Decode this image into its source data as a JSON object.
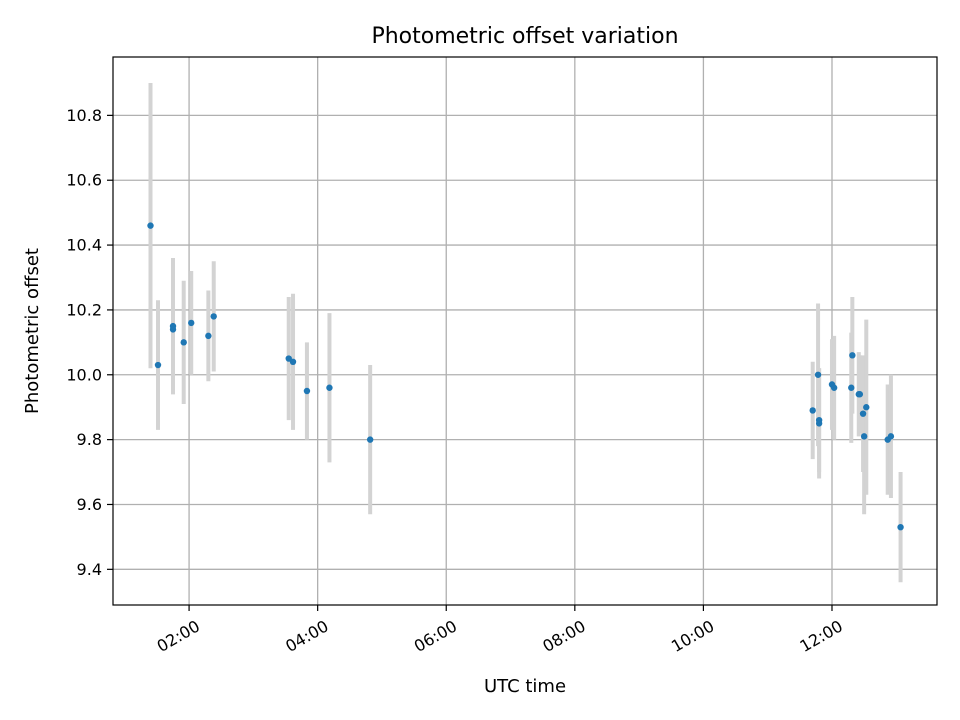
{
  "chart_data": {
    "type": "scatter",
    "title": "Photometric offset variation",
    "xlabel": "UTC time",
    "ylabel": "Photometric offset",
    "x_unit": "hours UTC",
    "xlim": [
      "00:49",
      "13:38"
    ],
    "ylim": [
      9.29,
      10.98
    ],
    "xticks": [
      {
        "value": "02:00",
        "label": "02:00"
      },
      {
        "value": "04:00",
        "label": "04:00"
      },
      {
        "value": "06:00",
        "label": "06:00"
      },
      {
        "value": "08:00",
        "label": "08:00"
      },
      {
        "value": "10:00",
        "label": "10:00"
      },
      {
        "value": "12:00",
        "label": "12:00"
      }
    ],
    "yticks": [
      {
        "value": 9.4,
        "label": "9.4"
      },
      {
        "value": 9.6,
        "label": "9.6"
      },
      {
        "value": 9.8,
        "label": "9.8"
      },
      {
        "value": 10.0,
        "label": "10.0"
      },
      {
        "value": 10.2,
        "label": "10.2"
      },
      {
        "value": 10.4,
        "label": "10.4"
      },
      {
        "value": 10.6,
        "label": "10.6"
      },
      {
        "value": 10.8,
        "label": "10.8"
      }
    ],
    "grid": true,
    "colors": {
      "point": "#1f77b4",
      "errorbar": "#d3d3d3",
      "grid": "#b0b0b0"
    },
    "points": [
      {
        "x": "01:24",
        "y": 10.46,
        "err": 0.44
      },
      {
        "x": "01:31",
        "y": 10.03,
        "err": 0.2
      },
      {
        "x": "01:45",
        "y": 10.15,
        "err": 0.21
      },
      {
        "x": "01:45",
        "y": 10.14,
        "err": 0.2
      },
      {
        "x": "01:55",
        "y": 10.1,
        "err": 0.19
      },
      {
        "x": "02:02",
        "y": 10.16,
        "err": 0.16
      },
      {
        "x": "02:18",
        "y": 10.12,
        "err": 0.14
      },
      {
        "x": "02:23",
        "y": 10.18,
        "err": 0.17
      },
      {
        "x": "03:33",
        "y": 10.05,
        "err": 0.19
      },
      {
        "x": "03:37",
        "y": 10.04,
        "err": 0.21
      },
      {
        "x": "03:50",
        "y": 9.95,
        "err": 0.15
      },
      {
        "x": "04:11",
        "y": 9.96,
        "err": 0.23
      },
      {
        "x": "04:49",
        "y": 9.8,
        "err": 0.23
      },
      {
        "x": "11:42",
        "y": 9.89,
        "err": 0.15
      },
      {
        "x": "11:47",
        "y": 10.0,
        "err": 0.22
      },
      {
        "x": "11:48",
        "y": 9.85,
        "err": 0.17
      },
      {
        "x": "11:48",
        "y": 9.86,
        "err": 0.16
      },
      {
        "x": "12:00",
        "y": 9.97,
        "err": 0.14
      },
      {
        "x": "12:02",
        "y": 9.96,
        "err": 0.16
      },
      {
        "x": "12:18",
        "y": 9.96,
        "err": 0.17
      },
      {
        "x": "12:19",
        "y": 10.06,
        "err": 0.18
      },
      {
        "x": "12:25",
        "y": 9.94,
        "err": 0.13
      },
      {
        "x": "12:26",
        "y": 9.94,
        "err": 0.12
      },
      {
        "x": "12:29",
        "y": 9.88,
        "err": 0.18
      },
      {
        "x": "12:30",
        "y": 9.81,
        "err": 0.24
      },
      {
        "x": "12:32",
        "y": 9.9,
        "err": 0.27
      },
      {
        "x": "12:52",
        "y": 9.8,
        "err": 0.17
      },
      {
        "x": "12:55",
        "y": 9.81,
        "err": 0.19
      },
      {
        "x": "13:04",
        "y": 9.53,
        "err": 0.17
      }
    ]
  }
}
